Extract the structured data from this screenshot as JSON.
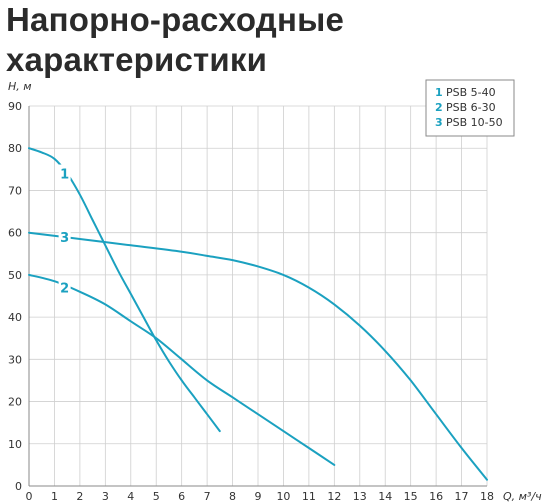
{
  "page": {
    "title": "Напорно-расходные характеристики"
  },
  "chart_data": {
    "type": "line",
    "xlabel": "Q, м³/ч",
    "ylabel": "H, м",
    "xlim": [
      0,
      18
    ],
    "ylim": [
      0,
      90
    ],
    "xticks": [
      0,
      1,
      2,
      3,
      4,
      5,
      6,
      7,
      8,
      9,
      10,
      11,
      12,
      13,
      14,
      15,
      16,
      17,
      18
    ],
    "yticks": [
      0,
      10,
      20,
      30,
      40,
      50,
      60,
      70,
      80,
      90
    ],
    "grid": true,
    "legend_position": "top-right",
    "series_color": "#1ba1c0",
    "series": [
      {
        "label": "1",
        "name": "PSB 5-40",
        "x": [
          0,
          0.5,
          1,
          1.5,
          2,
          2.5,
          3,
          3.5,
          4,
          4.5,
          5,
          5.5,
          6,
          6.5,
          7,
          7.5,
          8
        ],
        "y": [
          80,
          79,
          77.5,
          74,
          69,
          63,
          57,
          51,
          45.5,
          40,
          34.5,
          29.5,
          25,
          21,
          17,
          13,
          13
        ]
      },
      {
        "label": "2",
        "name": "PSB 6-30",
        "x": [
          0,
          1,
          2,
          3,
          4,
          5,
          6,
          7,
          8,
          9,
          10,
          11,
          12
        ],
        "y": [
          50,
          48.5,
          46,
          43,
          39,
          35,
          30,
          25,
          21,
          17,
          13,
          9,
          5
        ]
      },
      {
        "label": "3",
        "name": "PSB 10-50",
        "x": [
          0,
          2,
          4,
          6,
          7,
          8,
          9,
          10,
          11,
          12,
          13,
          14,
          15,
          16,
          17,
          18
        ],
        "y": [
          60,
          58.5,
          57,
          55.5,
          54.5,
          53.5,
          52,
          50,
          47,
          43,
          38,
          32,
          25,
          17,
          9,
          1.5
        ]
      }
    ],
    "curve_labels": [
      {
        "series": "1",
        "x": 1.4,
        "y": 74
      },
      {
        "series": "3",
        "x": 1.4,
        "y": 59
      },
      {
        "series": "2",
        "x": 1.4,
        "y": 47
      }
    ]
  }
}
